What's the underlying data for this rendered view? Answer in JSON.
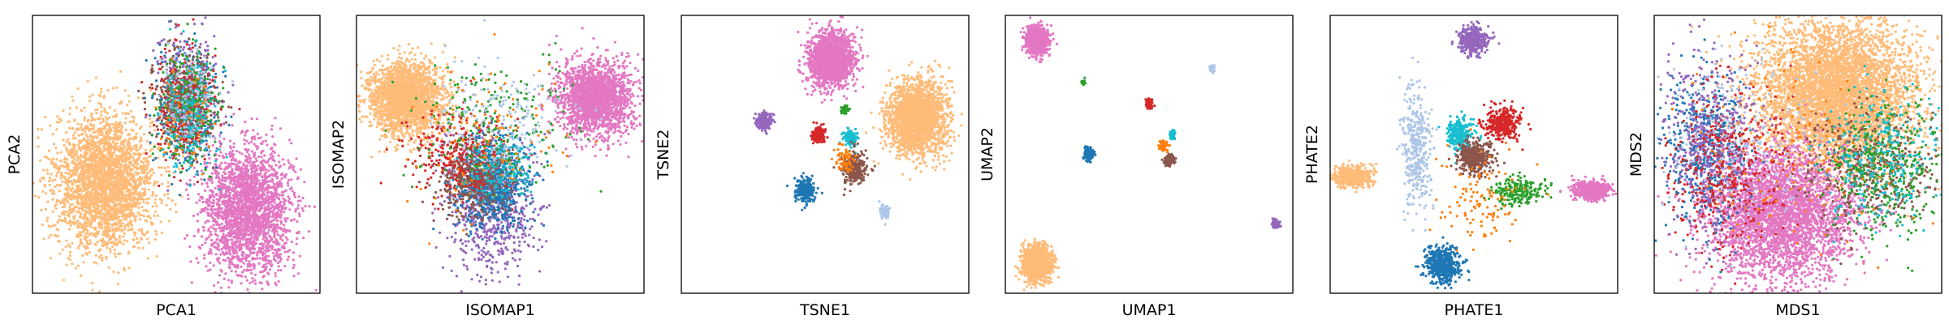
{
  "chart_data": [
    {
      "type": "scatter",
      "xlabel": "PCA1",
      "ylabel": "PCA2",
      "xlim": [
        0,
        100
      ],
      "ylim": [
        0,
        100
      ],
      "clusters": [
        {
          "color": "#ffbb78",
          "n": 2800,
          "cx": 25,
          "cy": 40,
          "sx": 8.5,
          "sy": 12
        },
        {
          "color": "#e377c2",
          "n": 2400,
          "cx": 75,
          "cy": 30,
          "sx": 7.5,
          "sy": 11
        },
        {
          "color": "#1f77b4",
          "n": 350,
          "cx": 53,
          "cy": 68,
          "sx": 5.5,
          "sy": 11
        },
        {
          "color": "#9467bd",
          "n": 300,
          "cx": 54,
          "cy": 72,
          "sx": 5.5,
          "sy": 11
        },
        {
          "color": "#8c564b",
          "n": 350,
          "cx": 53,
          "cy": 70,
          "sx": 5.5,
          "sy": 9
        },
        {
          "color": "#d62728",
          "n": 250,
          "cx": 52,
          "cy": 66,
          "sx": 5.5,
          "sy": 10
        },
        {
          "color": "#2ca02c",
          "n": 250,
          "cx": 55,
          "cy": 67,
          "sx": 5.5,
          "sy": 10
        },
        {
          "color": "#17becf",
          "n": 200,
          "cx": 54,
          "cy": 65,
          "sx": 5,
          "sy": 10
        },
        {
          "color": "#aec7e8",
          "n": 120,
          "cx": 54,
          "cy": 70,
          "sx": 5,
          "sy": 9
        },
        {
          "color": "#ff7f0e",
          "n": 60,
          "cx": 53,
          "cy": 64,
          "sx": 5,
          "sy": 9
        }
      ]
    },
    {
      "type": "scatter",
      "xlabel": "ISOMAP1",
      "ylabel": "ISOMAP2",
      "xlim": [
        0,
        100
      ],
      "ylim": [
        0,
        100
      ],
      "clusters": [
        {
          "color": "#ffbb78",
          "n": 2200,
          "cx": 17,
          "cy": 70,
          "sx": 6.5,
          "sy": 6.5
        },
        {
          "color": "#e377c2",
          "n": 2000,
          "cx": 83,
          "cy": 70,
          "sx": 6.5,
          "sy": 6.5
        },
        {
          "color": "#9467bd",
          "n": 700,
          "cx": 47,
          "cy": 32,
          "sx": 8,
          "sy": 12
        },
        {
          "color": "#1f77b4",
          "n": 700,
          "cx": 47,
          "cy": 40,
          "sx": 6,
          "sy": 8
        },
        {
          "color": "#8c564b",
          "n": 400,
          "cx": 40,
          "cy": 40,
          "sx": 6,
          "sy": 6
        },
        {
          "color": "#d62728",
          "n": 300,
          "cx": 35,
          "cy": 50,
          "sx": 9,
          "sy": 7
        },
        {
          "color": "#17becf",
          "n": 180,
          "cx": 50,
          "cy": 45,
          "sx": 6,
          "sy": 6
        },
        {
          "color": "#2ca02c",
          "n": 200,
          "cx": 47,
          "cy": 62,
          "sx": 14,
          "sy": 12
        },
        {
          "color": "#aec7e8",
          "n": 180,
          "cx": 48,
          "cy": 62,
          "sx": 12,
          "sy": 10
        },
        {
          "color": "#ff7f0e",
          "n": 120,
          "cx": 45,
          "cy": 55,
          "sx": 14,
          "sy": 12
        }
      ]
    },
    {
      "type": "scatter",
      "xlabel": "TSNE1",
      "ylabel": "TSNE2",
      "xlim": [
        0,
        100
      ],
      "ylim": [
        0,
        100
      ],
      "clusters": [
        {
          "color": "#e377c2",
          "n": 1800,
          "cx": 52,
          "cy": 84,
          "sx": 3.8,
          "sy": 4.8
        },
        {
          "color": "#ffbb78",
          "n": 2200,
          "cx": 82,
          "cy": 63,
          "sx": 5,
          "sy": 6.4
        },
        {
          "color": "#9467bd",
          "n": 200,
          "cx": 29,
          "cy": 62,
          "sx": 1.3,
          "sy": 1.7
        },
        {
          "color": "#d62728",
          "n": 160,
          "cx": 48,
          "cy": 57,
          "sx": 1.2,
          "sy": 1.5
        },
        {
          "color": "#17becf",
          "n": 150,
          "cx": 59,
          "cy": 56,
          "sx": 1.1,
          "sy": 1.5
        },
        {
          "color": "#2ca02c",
          "n": 40,
          "cx": 57,
          "cy": 66,
          "sx": 0.6,
          "sy": 0.8
        },
        {
          "color": "#1f77b4",
          "n": 250,
          "cx": 43,
          "cy": 37,
          "sx": 1.6,
          "sy": 2.1
        },
        {
          "color": "#8c564b",
          "n": 300,
          "cx": 60,
          "cy": 45,
          "sx": 2,
          "sy": 2.6
        },
        {
          "color": "#ff7f0e",
          "n": 70,
          "cx": 57,
          "cy": 48,
          "sx": 1.7,
          "sy": 2.5
        },
        {
          "color": "#aec7e8",
          "n": 80,
          "cx": 71,
          "cy": 29,
          "sx": 0.9,
          "sy": 1.3
        }
      ]
    },
    {
      "type": "scatter",
      "xlabel": "UMAP1",
      "ylabel": "UMAP2",
      "xlim": [
        0,
        100
      ],
      "ylim": [
        0,
        100
      ],
      "clusters": [
        {
          "color": "#e377c2",
          "n": 800,
          "cx": 11,
          "cy": 91,
          "sx": 1.9,
          "sy": 2.4
        },
        {
          "color": "#ffbb78",
          "n": 1300,
          "cx": 11,
          "cy": 11,
          "sx": 2.4,
          "sy": 3.1
        },
        {
          "color": "#aec7e8",
          "n": 50,
          "cx": 72,
          "cy": 81,
          "sx": 0.5,
          "sy": 0.6
        },
        {
          "color": "#2ca02c",
          "n": 25,
          "cx": 27,
          "cy": 76,
          "sx": 0.4,
          "sy": 0.5
        },
        {
          "color": "#d62728",
          "n": 80,
          "cx": 50,
          "cy": 68,
          "sx": 0.6,
          "sy": 0.8
        },
        {
          "color": "#1f77b4",
          "n": 150,
          "cx": 29,
          "cy": 50,
          "sx": 0.8,
          "sy": 1.1
        },
        {
          "color": "#17becf",
          "n": 60,
          "cx": 58,
          "cy": 57,
          "sx": 0.5,
          "sy": 0.9
        },
        {
          "color": "#ff7f0e",
          "n": 60,
          "cx": 55,
          "cy": 53,
          "sx": 0.8,
          "sy": 0.8
        },
        {
          "color": "#8c564b",
          "n": 120,
          "cx": 57,
          "cy": 48,
          "sx": 0.9,
          "sy": 1.1
        },
        {
          "color": "#9467bd",
          "n": 100,
          "cx": 94,
          "cy": 25,
          "sx": 0.6,
          "sy": 0.8
        }
      ]
    },
    {
      "type": "scatter",
      "xlabel": "PHATE1",
      "ylabel": "PHATE2",
      "xlim": [
        0,
        100
      ],
      "ylim": [
        0,
        100
      ],
      "clusters": [
        {
          "color": "#9467bd",
          "n": 400,
          "cx": 50,
          "cy": 91,
          "sx": 2.5,
          "sy": 2.5
        },
        {
          "color": "#ffbb78",
          "n": 500,
          "cx": 8,
          "cy": 42,
          "sx": 3.2,
          "sy": 1.7
        },
        {
          "color": "#e377c2",
          "n": 500,
          "cx": 91,
          "cy": 37,
          "sx": 3.2,
          "sy": 1.7
        },
        {
          "color": "#1f77b4",
          "n": 500,
          "cx": 39,
          "cy": 10,
          "sx": 3,
          "sy": 3.2
        },
        {
          "color": "#aec7e8",
          "n": 400,
          "cx": 30,
          "cy": 52,
          "sx": 2.5,
          "sy": 11
        },
        {
          "color": "#17becf",
          "n": 250,
          "cx": 45,
          "cy": 57,
          "sx": 2.4,
          "sy": 3
        },
        {
          "color": "#d62728",
          "n": 350,
          "cx": 60,
          "cy": 61,
          "sx": 3,
          "sy": 3
        },
        {
          "color": "#8c564b",
          "n": 400,
          "cx": 50,
          "cy": 49,
          "sx": 3,
          "sy": 3
        },
        {
          "color": "#2ca02c",
          "n": 200,
          "cx": 66,
          "cy": 37,
          "sx": 5,
          "sy": 2.5
        },
        {
          "color": "#ff7f0e",
          "n": 120,
          "cx": 52,
          "cy": 34,
          "sx": 7,
          "sy": 8
        }
      ]
    },
    {
      "type": "scatter",
      "xlabel": "MDS1",
      "ylabel": "MDS2",
      "xlim": [
        0,
        100
      ],
      "ylim": [
        0,
        100
      ],
      "clusters": [
        {
          "color": "#ffbb78",
          "n": 5000,
          "cx": 63,
          "cy": 72,
          "sx": 14,
          "sy": 13
        },
        {
          "color": "#e377c2",
          "n": 3500,
          "cx": 44,
          "cy": 28,
          "sx": 13,
          "sy": 12
        },
        {
          "color": "#1f77b4",
          "n": 500,
          "cx": 17,
          "cy": 52,
          "sx": 7,
          "sy": 14
        },
        {
          "color": "#9467bd",
          "n": 500,
          "cx": 20,
          "cy": 55,
          "sx": 8,
          "sy": 16
        },
        {
          "color": "#d62728",
          "n": 400,
          "cx": 25,
          "cy": 45,
          "sx": 10,
          "sy": 14
        },
        {
          "color": "#8c564b",
          "n": 450,
          "cx": 75,
          "cy": 45,
          "sx": 12,
          "sy": 10
        },
        {
          "color": "#2ca02c",
          "n": 400,
          "cx": 80,
          "cy": 45,
          "sx": 10,
          "sy": 12
        },
        {
          "color": "#17becf",
          "n": 300,
          "cx": 78,
          "cy": 48,
          "sx": 10,
          "sy": 12
        },
        {
          "color": "#aec7e8",
          "n": 200,
          "cx": 30,
          "cy": 55,
          "sx": 15,
          "sy": 15
        },
        {
          "color": "#ff7f0e",
          "n": 150,
          "cx": 50,
          "cy": 50,
          "sx": 18,
          "sy": 18
        }
      ]
    }
  ]
}
